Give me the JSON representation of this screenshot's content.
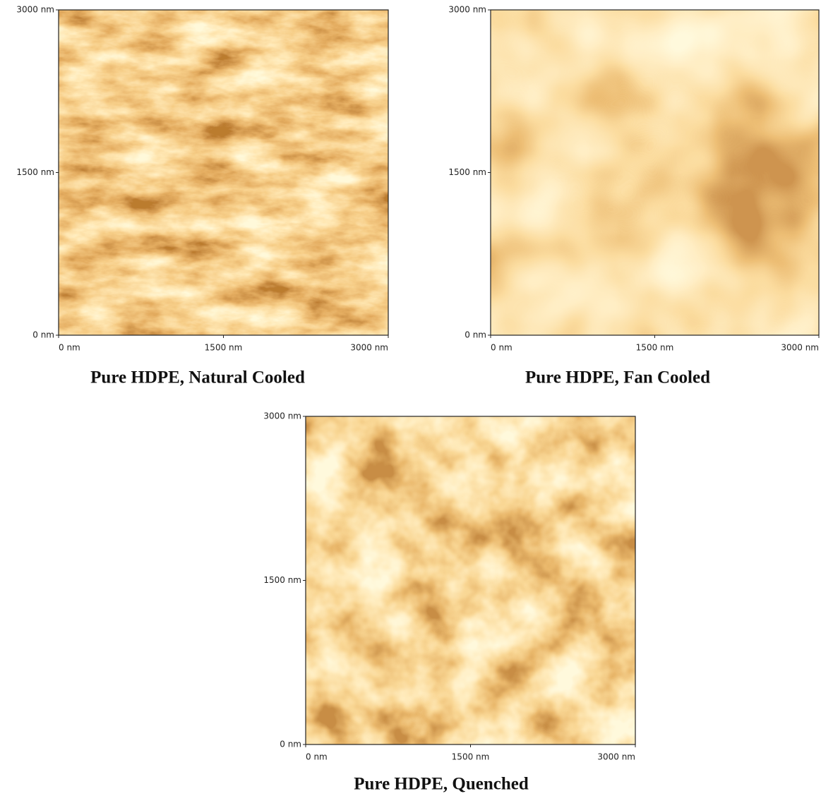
{
  "panels": [
    {
      "caption": "Pure HDPE, Natural Cooled",
      "y_ticks": [
        "3000 nm",
        "1500 nm",
        "0 nm"
      ],
      "x_ticks": [
        "0 nm",
        "1500 nm",
        "3000 nm"
      ]
    },
    {
      "caption": "Pure HDPE, Fan Cooled",
      "y_ticks": [
        "3000 nm",
        "1500 nm",
        "0 nm"
      ],
      "x_ticks": [
        "0 nm",
        "1500 nm",
        "3000 nm"
      ]
    },
    {
      "caption": "Pure HDPE, Quenched",
      "y_ticks": [
        "3000 nm",
        "1500 nm",
        "0 nm"
      ],
      "x_ticks": [
        "0 nm",
        "1500 nm",
        "3000 nm"
      ]
    }
  ]
}
